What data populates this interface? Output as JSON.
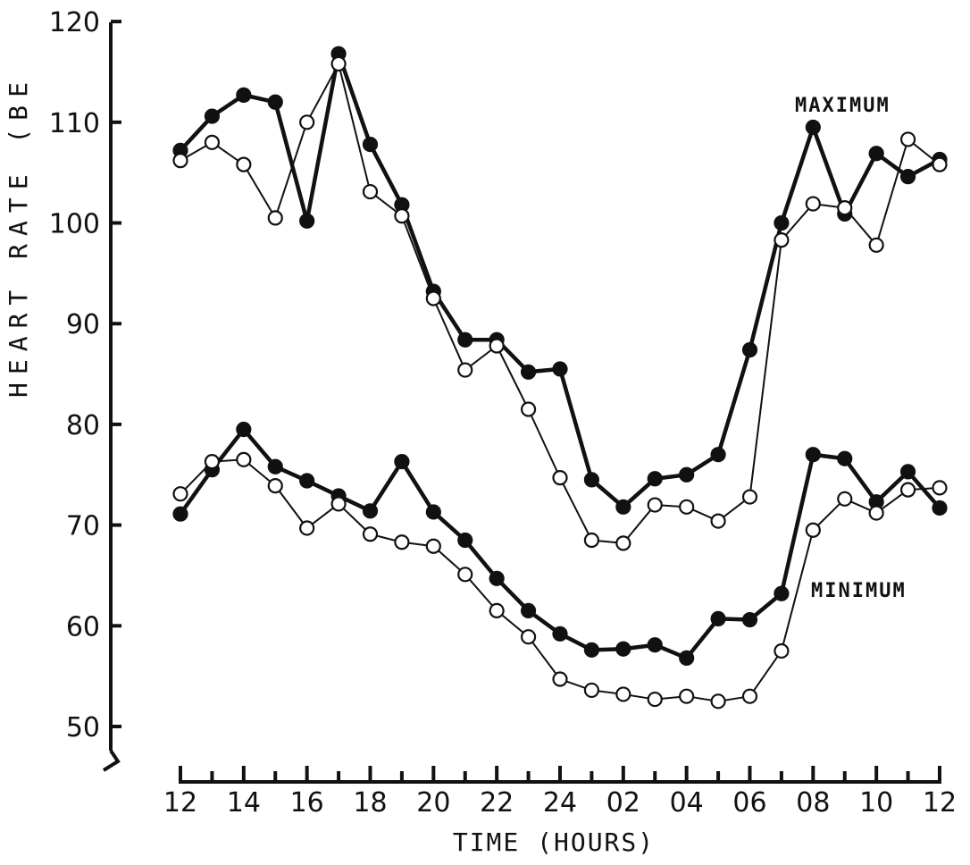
{
  "chart_data": {
    "type": "line",
    "xlabel": "TIME (HOURS)",
    "ylabel": "HEART RATE (BE",
    "ylim": [
      50,
      120
    ],
    "yticks": [
      50,
      60,
      70,
      80,
      90,
      100,
      110,
      120
    ],
    "xtick_labels": [
      "12",
      "14",
      "16",
      "18",
      "20",
      "22",
      "24",
      "02",
      "04",
      "06",
      "08",
      "10",
      "12"
    ],
    "grid": false,
    "annotations": {
      "maximum": "MAXIMUM",
      "minimum": "MINIMUM"
    },
    "series": [
      {
        "group": "maximum",
        "marker": "filled",
        "values": [
          107.2,
          110.6,
          112.7,
          112.0,
          100.2,
          116.8,
          107.8,
          101.8,
          93.2,
          88.4,
          88.4,
          85.2,
          85.5,
          74.5,
          71.8,
          74.6,
          75.0,
          77.0,
          87.4,
          100.0,
          109.5,
          100.9,
          106.9,
          104.6,
          106.3
        ]
      },
      {
        "group": "maximum",
        "marker": "open",
        "values": [
          106.2,
          108.0,
          105.8,
          100.5,
          110.0,
          115.8,
          103.1,
          100.7,
          92.5,
          85.4,
          87.8,
          81.5,
          74.7,
          68.5,
          68.2,
          72.0,
          71.8,
          70.4,
          72.8,
          98.3,
          101.9,
          101.5,
          97.8,
          108.3,
          105.8
        ]
      },
      {
        "group": "minimum",
        "marker": "filled",
        "values": [
          71.1,
          75.5,
          79.5,
          75.8,
          74.4,
          72.9,
          71.4,
          76.3,
          71.3,
          68.5,
          64.7,
          61.5,
          59.2,
          57.6,
          57.7,
          58.1,
          56.8,
          60.7,
          60.6,
          63.2,
          77.0,
          76.6,
          72.3,
          75.3,
          71.7
        ]
      },
      {
        "group": "minimum",
        "marker": "open",
        "values": [
          73.1,
          76.3,
          76.5,
          73.9,
          69.7,
          72.1,
          69.1,
          68.3,
          67.9,
          65.1,
          61.5,
          58.9,
          54.7,
          53.6,
          53.2,
          52.7,
          53.0,
          52.5,
          53.0,
          57.5,
          69.5,
          72.6,
          71.2,
          73.5,
          73.7
        ]
      }
    ],
    "colors": {
      "ink": "#111111",
      "background": "#ffffff"
    }
  }
}
